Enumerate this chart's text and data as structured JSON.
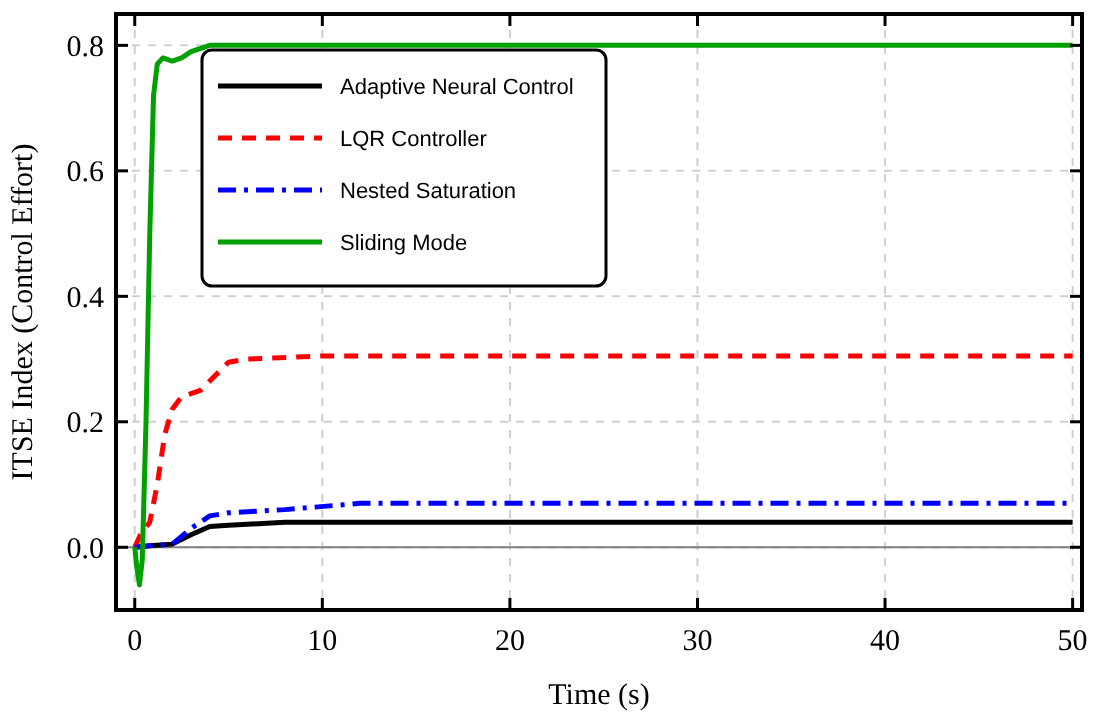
{
  "chart_data": {
    "type": "line",
    "xlabel": "Time (s)",
    "ylabel": "ITSE Index (Control Effort)",
    "xlim": [
      -1,
      50.5
    ],
    "ylim": [
      -0.1,
      0.85
    ],
    "xticks": [
      0,
      10,
      20,
      30,
      40,
      50
    ],
    "yticks": [
      {
        "value": 0,
        "label": "0.0"
      },
      0.2,
      0.4,
      0.6,
      0.8
    ],
    "grid": true,
    "legend": "top left",
    "ref_lines": [
      {
        "axis": "y",
        "value": 0,
        "color": "#808080"
      }
    ],
    "series": [
      {
        "name": "Adaptive Neural Control",
        "color": "#000000",
        "line_style": "solid",
        "x": [
          0,
          1,
          2,
          3,
          4,
          5,
          8,
          50
        ],
        "values": [
          0,
          0.003,
          0.005,
          0.02,
          0.033,
          0.035,
          0.04,
          0.04
        ]
      },
      {
        "name": "LQR Controller",
        "color": "#ff0000",
        "line_style": "dashed",
        "x": [
          0,
          0.3,
          0.8,
          1.2,
          1.6,
          2,
          2.5,
          3.5,
          4.5,
          5,
          6,
          10,
          50
        ],
        "values": [
          0,
          0.02,
          0.04,
          0.1,
          0.18,
          0.22,
          0.24,
          0.25,
          0.28,
          0.295,
          0.3,
          0.305,
          0.305
        ]
      },
      {
        "name": "Nested Saturation",
        "color": "#0000ff",
        "line_style": "dashdot",
        "x": [
          0,
          1,
          2,
          3,
          4,
          5,
          8,
          12,
          50
        ],
        "values": [
          0,
          0.003,
          0.005,
          0.03,
          0.05,
          0.055,
          0.06,
          0.07,
          0.07
        ]
      },
      {
        "name": "Sliding Mode",
        "color": "#00a000",
        "line_style": "solid",
        "x": [
          0,
          0.1,
          0.25,
          0.4,
          0.6,
          0.8,
          1,
          1.2,
          1.5,
          2,
          2.5,
          3,
          4,
          50
        ],
        "values": [
          0,
          -0.03,
          -0.06,
          -0.02,
          0.2,
          0.5,
          0.72,
          0.77,
          0.78,
          0.775,
          0.78,
          0.79,
          0.8,
          0.8
        ]
      }
    ]
  }
}
